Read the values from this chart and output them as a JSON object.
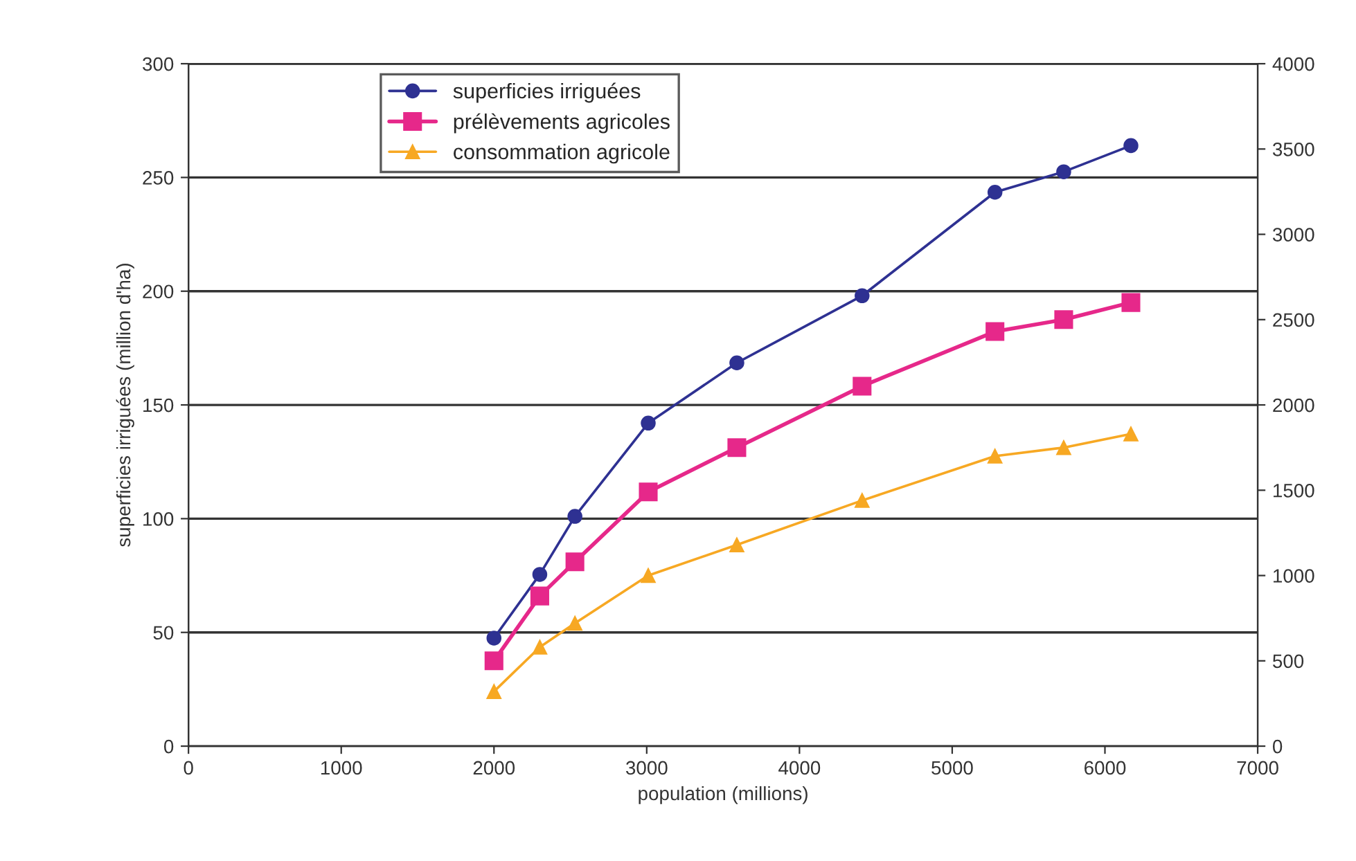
{
  "chart_data": {
    "type": "line",
    "xlabel": "population (millions)",
    "ylabel": "superficies irriguées (million d'ha)",
    "x": [
      2000,
      2300,
      2530,
      3010,
      3590,
      4410,
      5280,
      5730,
      6170
    ],
    "series": [
      {
        "name": "superficies irriguées",
        "color": "#2e3192",
        "marker": "circle",
        "values": [
          47.5,
          75.5,
          101,
          142,
          168.5,
          198,
          243.5,
          252.5,
          264
        ]
      },
      {
        "name": "prélèvements agricoles",
        "color": "#e6288a",
        "marker": "square",
        "axis": "y2",
        "values": [
          500,
          880,
          1080,
          1490,
          1750,
          2110,
          2430,
          2500,
          2600
        ]
      },
      {
        "name": "consommation agricole",
        "color": "#f7a823",
        "marker": "triangle",
        "axis": "y2",
        "values": [
          320,
          580,
          720,
          1000,
          1180,
          1440,
          1700,
          1750,
          1830
        ]
      }
    ],
    "xlim": [
      0,
      7000
    ],
    "xticks": [
      0,
      1000,
      2000,
      3000,
      4000,
      5000,
      6000,
      7000
    ],
    "ylim": [
      0,
      300
    ],
    "yticks": [
      0,
      50,
      100,
      150,
      200,
      250,
      300
    ],
    "y2lim": [
      0,
      4000
    ],
    "y2ticks": [
      0,
      500,
      1000,
      1500,
      2000,
      2500,
      3000,
      3500,
      4000
    ],
    "grid": "y",
    "legend": "top left",
    "line_style": "solid"
  }
}
